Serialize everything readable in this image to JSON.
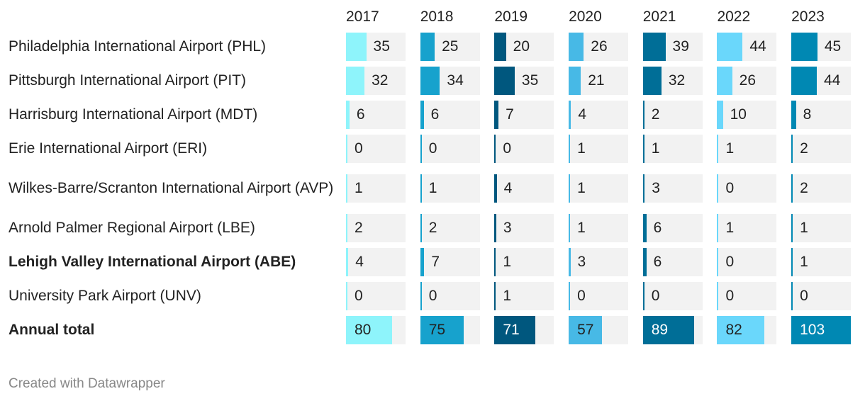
{
  "chart_data": {
    "type": "table",
    "columns": [
      "2017",
      "2018",
      "2019",
      "2020",
      "2021",
      "2022",
      "2023"
    ],
    "colors": [
      "#8ef4fb",
      "#17a2cd",
      "#00577e",
      "#47b9e6",
      "#006e97",
      "#6ad7fb",
      "#0088b3"
    ],
    "max": 103,
    "rows": [
      {
        "label": "Philadelphia International Airport (PHL)",
        "bold": false,
        "values": [
          35,
          25,
          20,
          26,
          39,
          44,
          45
        ]
      },
      {
        "label": "Pittsburgh International Airport (PIT)",
        "bold": false,
        "values": [
          32,
          34,
          35,
          21,
          32,
          26,
          44
        ]
      },
      {
        "label": "Harrisburg International Airport (MDT)",
        "bold": false,
        "values": [
          6,
          6,
          7,
          4,
          2,
          10,
          8
        ]
      },
      {
        "label": "Erie International Airport (ERI)",
        "bold": false,
        "values": [
          0,
          0,
          0,
          1,
          1,
          1,
          2
        ]
      },
      {
        "label": "Wilkes-Barre/Scranton International Airport (AVP)",
        "bold": false,
        "values": [
          1,
          1,
          4,
          1,
          3,
          0,
          2
        ]
      },
      {
        "label": "Arnold Palmer Regional Airport (LBE)",
        "bold": false,
        "values": [
          2,
          2,
          3,
          1,
          6,
          1,
          1
        ]
      },
      {
        "label": "Lehigh Valley International Airport (ABE)",
        "bold": true,
        "values": [
          4,
          7,
          1,
          3,
          6,
          0,
          1
        ]
      },
      {
        "label": "University Park Airport (UNV)",
        "bold": false,
        "values": [
          0,
          0,
          1,
          0,
          0,
          0,
          0
        ]
      },
      {
        "label": "Annual total",
        "bold": true,
        "values": [
          80,
          75,
          71,
          57,
          89,
          82,
          103
        ]
      }
    ]
  },
  "footer": "Created with Datawrapper"
}
